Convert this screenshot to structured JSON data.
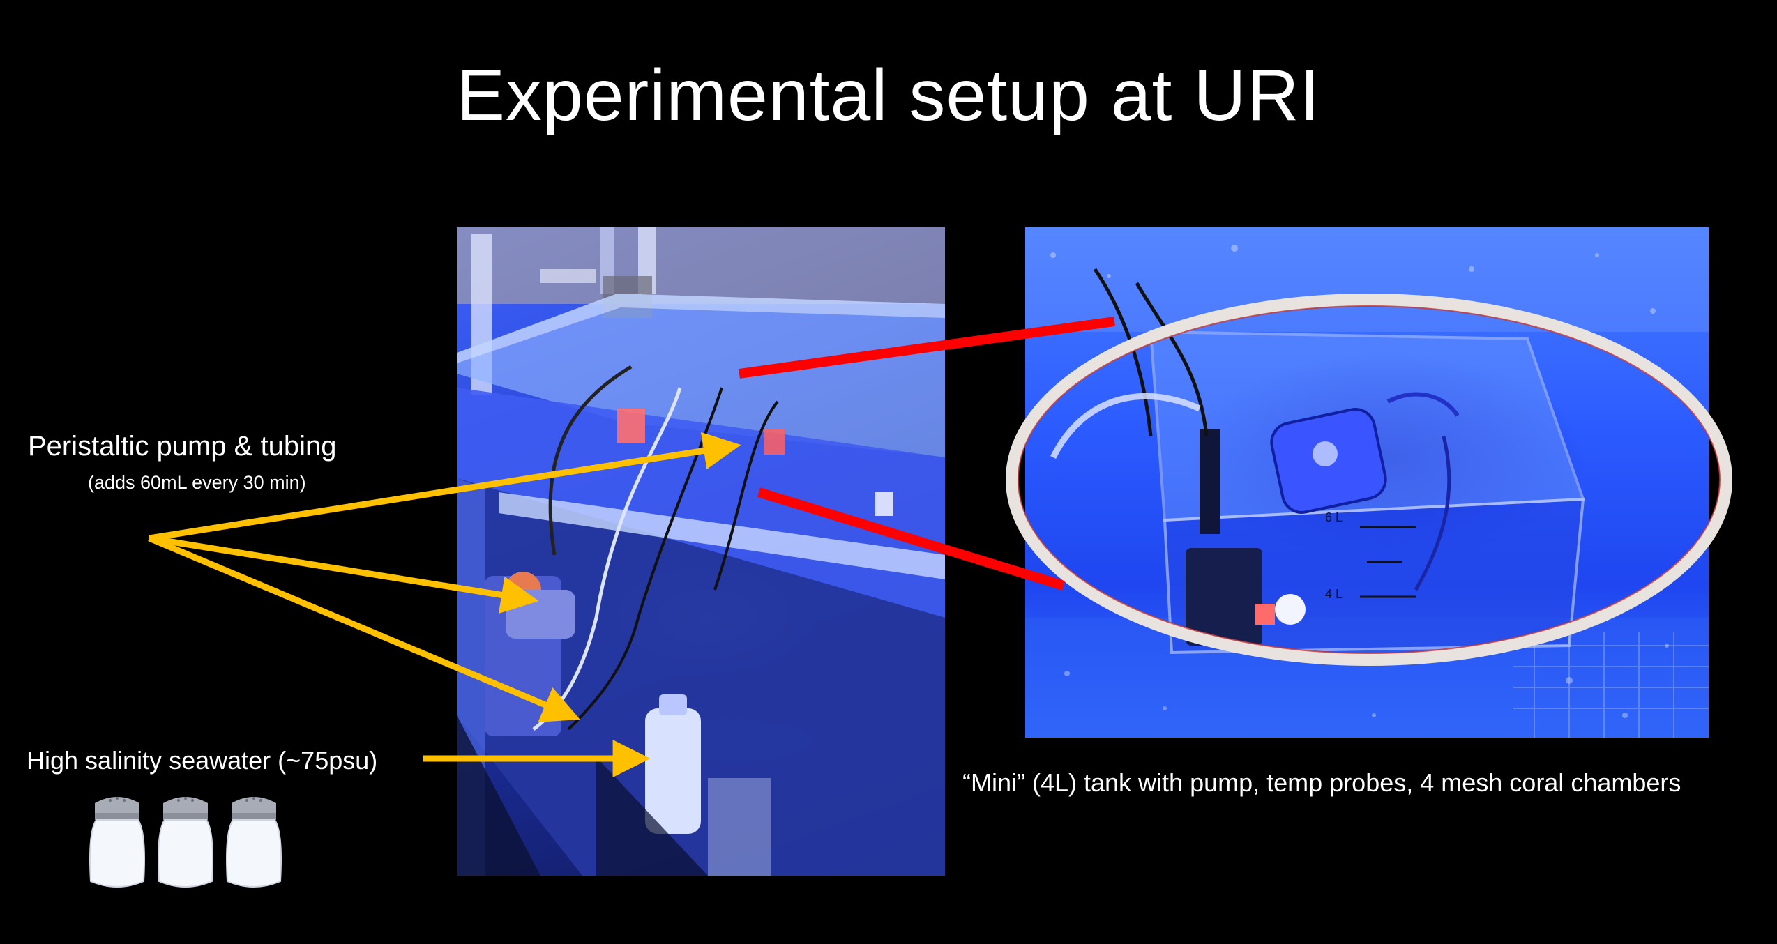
{
  "slide": {
    "title": "Experimental setup at URI"
  },
  "labels": {
    "pump": "Peristaltic pump & tubing",
    "pump_detail": "(adds 60mL every 30 min)",
    "seawater": "High salinity seawater (~75psu)",
    "mini_tank": "“Mini” (4L) tank with pump, temp probes, 4 mesh coral chambers"
  },
  "photo_right": {
    "tank_marks": [
      "6 L",
      "4 L"
    ]
  },
  "colors": {
    "background": "#000000",
    "arrow": "#FFC000",
    "connector": "#FF0000",
    "highlight_ellipse": "#E8E3DF"
  },
  "icons": [
    "salt-shaker-icon",
    "salt-shaker-icon",
    "salt-shaker-icon"
  ]
}
